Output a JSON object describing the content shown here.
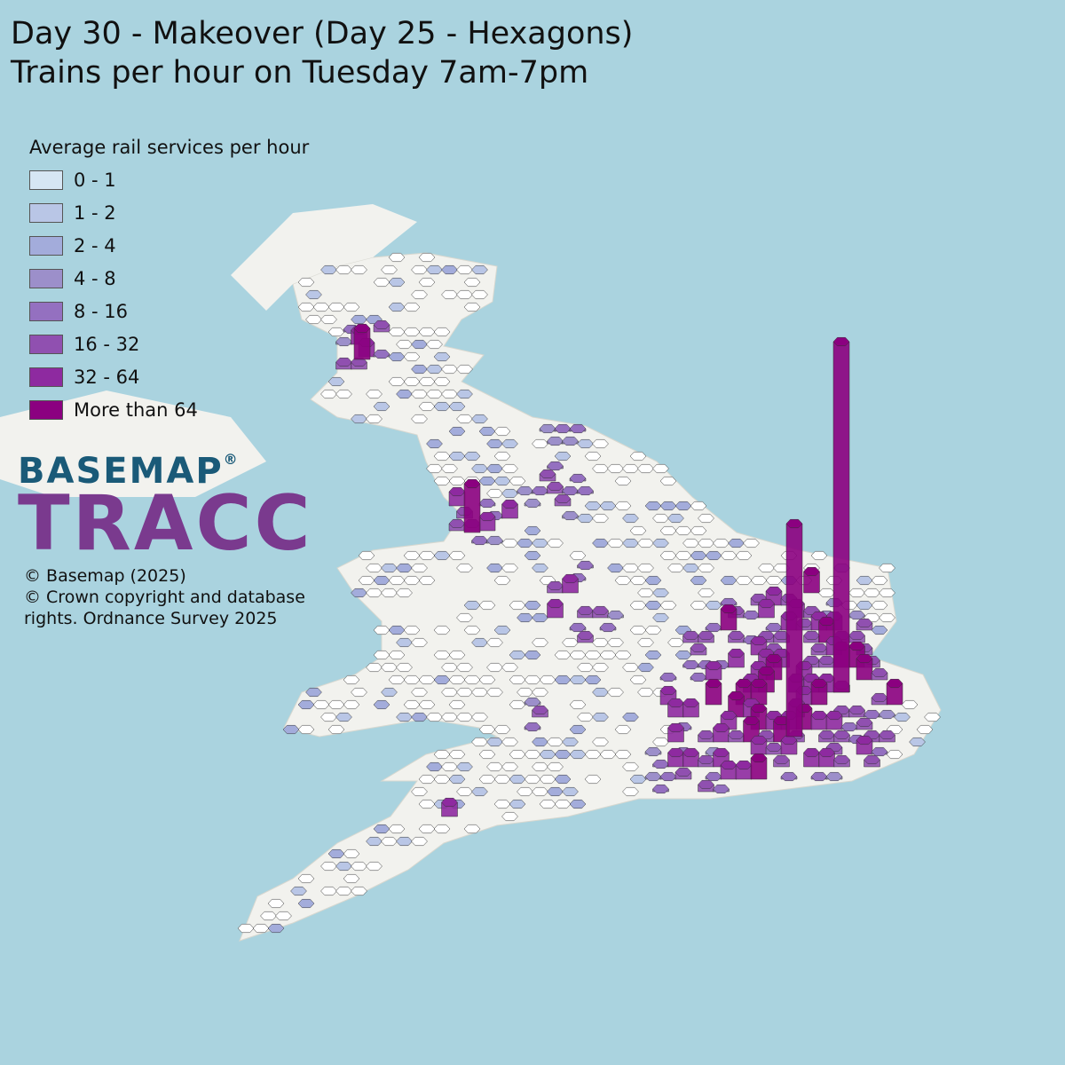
{
  "title": [
    "Day 30 - Makeover (Day 25 - Hexagons)",
    "Trains per hour on Tuesday 7am-7pm"
  ],
  "legend": {
    "title": "Average rail services per hour",
    "items": [
      {
        "label": "0 - 1",
        "color": "#d6e6f4"
      },
      {
        "label": "1 - 2",
        "color": "#b9c6e6"
      },
      {
        "label": "2 - 4",
        "color": "#a3acdb"
      },
      {
        "label": "4 - 8",
        "color": "#9c8fca"
      },
      {
        "label": "8 - 16",
        "color": "#9470c0"
      },
      {
        "label": "16 - 32",
        "color": "#9050b0"
      },
      {
        "label": "32 - 64",
        "color": "#8e2aa0"
      },
      {
        "label": "More than 64",
        "color": "#8b0080"
      }
    ]
  },
  "logo": {
    "top": "BASEMAP",
    "mark": "®",
    "bottom": "TRACC"
  },
  "credits": [
    "© Basemap (2025)",
    "© Crown copyright and database",
    "rights. Ordnance Survey 2025"
  ]
}
